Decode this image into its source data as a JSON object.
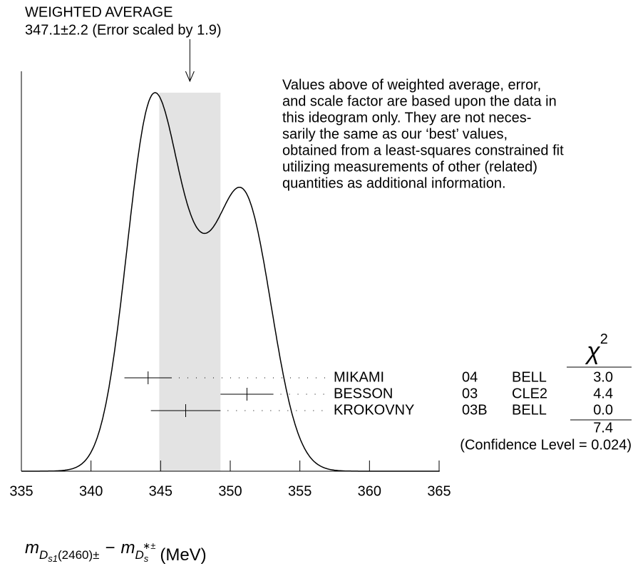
{
  "chart_data": {
    "type": "ideogram",
    "title": "WEIGHTED AVERAGE",
    "subtitle": "347.1±2.2 (Error scaled by 1.9)",
    "average": 347.1,
    "average_error": 2.2,
    "note": [
      "Values above of weighted average, error,",
      "and scale factor are based upon the data in",
      "this ideogram only.  They are not neces-",
      "sarily the same as our ‘best’ values,",
      "obtained from a least-squares constrained fit",
      "utilizing measurements of other (related)",
      "quantities as additional information."
    ],
    "names": [
      "MIKAMI",
      "BESSON",
      "KROKOVNY"
    ],
    "years": [
      "04",
      "03",
      "03B"
    ],
    "experiments": [
      "BELL",
      "CLE2",
      "BELL"
    ],
    "values": [
      344.1,
      351.2,
      346.8
    ],
    "errors": [
      1.7,
      1.9,
      2.5
    ],
    "chi2_header": "χ",
    "chi2_header_sup": "2",
    "chi2": {
      "values": [
        3.0,
        4.4,
        0.0
      ],
      "value_labels": [
        "3.0",
        "4.4",
        "0.0"
      ]
    },
    "chi2_total": 7.4,
    "confidence": "(Confidence Level = 0.024)",
    "xlim": [
      335,
      365
    ],
    "xticks": [
      335,
      340,
      345,
      350,
      355,
      360,
      365
    ],
    "xlabel": {
      "m1": "m",
      "sub1": "D",
      "subsub1": "s1",
      "sub1b": "(2460)±",
      "minus": "−",
      "m2": "m",
      "sub2": "D",
      "subsub2": "s",
      "sup2": "∗±",
      "unit": "(MeV)"
    },
    "band_color": "#e3e3e3",
    "color": "#000000"
  }
}
